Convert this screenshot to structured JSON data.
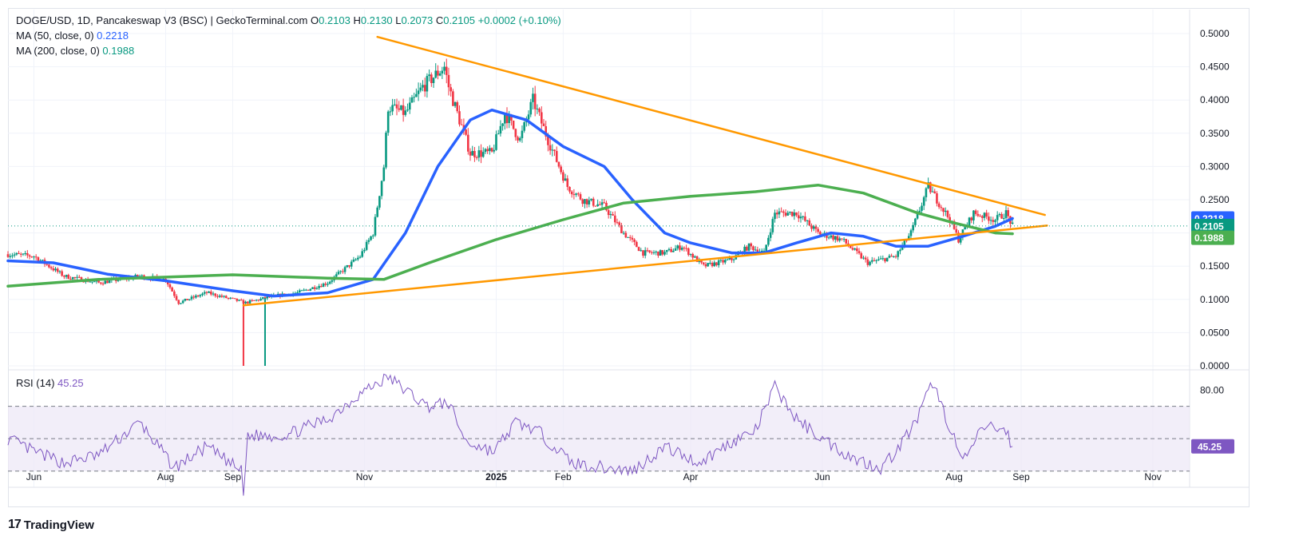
{
  "header": {
    "symbol_line": "DOGE/USD, 1D, Pancakeswap V3 (BSC) | GeckoTerminal.com",
    "ohlc": [
      {
        "label": "O",
        "value": "0.2103"
      },
      {
        "label": "H",
        "value": "0.2130"
      },
      {
        "label": "L",
        "value": "0.2073"
      },
      {
        "label": "C",
        "value": "0.2105"
      }
    ],
    "change": "+0.0002 (+0.10%)",
    "ma50_label": "MA (50, close, 0)",
    "ma50_value": "0.2218",
    "ma200_label": "MA (200, close, 0)",
    "ma200_value": "0.1988"
  },
  "rsi_panel": {
    "label": "RSI (14)",
    "value": "45.25",
    "axis_label": "80.00",
    "badge": "45.25",
    "upper": 70,
    "lower": 30,
    "mid": 50
  },
  "branding": {
    "logo_text": "TradingView"
  },
  "colors": {
    "up": "#089981",
    "down": "#f23645",
    "ma50": "#2962ff",
    "ma200": "#4caf50",
    "trendline": "#ff9800",
    "rsi": "#7e57c2",
    "rsi_band": "#ede7f6"
  },
  "chart_data": [
    {
      "type": "candlestick",
      "title": "DOGE/USD, 1D",
      "ylim": [
        0,
        0.5
      ],
      "y_ticks": [
        "0.5000",
        "0.4500",
        "0.4000",
        "0.3500",
        "0.3000",
        "0.2500",
        "0.2000",
        "0.1500",
        "0.1000",
        "0.0500",
        "0.0000"
      ],
      "x_ticks": [
        "Jun",
        "Aug",
        "Sep",
        "Nov",
        "2025",
        "Feb",
        "Apr",
        "Jun",
        "Aug",
        "Sep",
        "Nov"
      ],
      "x_tick_dates": [
        "2024-06-01",
        "2024-08-01",
        "2024-09-01",
        "2024-11-01",
        "2025-01-01",
        "2025-02-01",
        "2025-04-01",
        "2025-06-01",
        "2025-08-01",
        "2025-09-01",
        "2025-11-01"
      ],
      "x_range": [
        "2024-05-20",
        "2025-11-18"
      ],
      "last_price": 0.2105,
      "price_anchors": [
        [
          "2024-05-20",
          0.168
        ],
        [
          "2024-06-01",
          0.165
        ],
        [
          "2024-06-15",
          0.135
        ],
        [
          "2024-07-01",
          0.125
        ],
        [
          "2024-07-20",
          0.135
        ],
        [
          "2024-08-01",
          0.13
        ],
        [
          "2024-08-07",
          0.095
        ],
        [
          "2024-08-20",
          0.11
        ],
        [
          "2024-09-01",
          0.1
        ],
        [
          "2024-09-07",
          0.095
        ],
        [
          "2024-09-20",
          0.105
        ],
        [
          "2024-10-01",
          0.11
        ],
        [
          "2024-10-15",
          0.125
        ],
        [
          "2024-10-30",
          0.165
        ],
        [
          "2024-11-05",
          0.2
        ],
        [
          "2024-11-10",
          0.3
        ],
        [
          "2024-11-12",
          0.39
        ],
        [
          "2024-11-20",
          0.38
        ],
        [
          "2024-11-28",
          0.42
        ],
        [
          "2024-12-08",
          0.45
        ],
        [
          "2024-12-10",
          0.42
        ],
        [
          "2024-12-20",
          0.32
        ],
        [
          "2024-12-30",
          0.32
        ],
        [
          "2025-01-05",
          0.38
        ],
        [
          "2025-01-12",
          0.34
        ],
        [
          "2025-01-18",
          0.4
        ],
        [
          "2025-01-25",
          0.34
        ],
        [
          "2025-02-03",
          0.27
        ],
        [
          "2025-02-10",
          0.25
        ],
        [
          "2025-02-20",
          0.24
        ],
        [
          "2025-03-01",
          0.2
        ],
        [
          "2025-03-10",
          0.17
        ],
        [
          "2025-03-20",
          0.17
        ],
        [
          "2025-03-28",
          0.18
        ],
        [
          "2025-04-07",
          0.15
        ],
        [
          "2025-04-20",
          0.16
        ],
        [
          "2025-04-28",
          0.18
        ],
        [
          "2025-05-05",
          0.17
        ],
        [
          "2025-05-10",
          0.23
        ],
        [
          "2025-05-20",
          0.23
        ],
        [
          "2025-05-30",
          0.2
        ],
        [
          "2025-06-10",
          0.19
        ],
        [
          "2025-06-22",
          0.155
        ],
        [
          "2025-07-05",
          0.165
        ],
        [
          "2025-07-12",
          0.2
        ],
        [
          "2025-07-20",
          0.27
        ],
        [
          "2025-07-30",
          0.22
        ],
        [
          "2025-08-03",
          0.19
        ],
        [
          "2025-08-10",
          0.23
        ],
        [
          "2025-08-20",
          0.22
        ],
        [
          "2025-08-25",
          0.23
        ],
        [
          "2025-08-28",
          0.2105
        ]
      ],
      "spikes": [
        {
          "date": "2024-09-06",
          "low": 0.0
        },
        {
          "date": "2024-09-16",
          "low": 0.0
        }
      ],
      "series": [
        {
          "name": "MA (50, close, 0)",
          "points": [
            [
              "2024-05-20",
              0.158
            ],
            [
              "2024-06-10",
              0.155
            ],
            [
              "2024-07-05",
              0.138
            ],
            [
              "2024-08-01",
              0.128
            ],
            [
              "2024-09-01",
              0.113
            ],
            [
              "2024-09-20",
              0.105
            ],
            [
              "2024-10-15",
              0.11
            ],
            [
              "2024-11-05",
              0.13
            ],
            [
              "2024-11-20",
              0.2
            ],
            [
              "2024-12-05",
              0.3
            ],
            [
              "2024-12-20",
              0.37
            ],
            [
              "2024-12-30",
              0.385
            ],
            [
              "2025-01-15",
              0.37
            ],
            [
              "2025-02-01",
              0.33
            ],
            [
              "2025-02-20",
              0.3
            ],
            [
              "2025-03-05",
              0.25
            ],
            [
              "2025-03-20",
              0.2
            ],
            [
              "2025-04-01",
              0.185
            ],
            [
              "2025-04-20",
              0.17
            ],
            [
              "2025-05-05",
              0.17
            ],
            [
              "2025-05-20",
              0.185
            ],
            [
              "2025-06-05",
              0.2
            ],
            [
              "2025-06-20",
              0.195
            ],
            [
              "2025-07-05",
              0.18
            ],
            [
              "2025-07-20",
              0.18
            ],
            [
              "2025-08-05",
              0.195
            ],
            [
              "2025-08-20",
              0.21
            ],
            [
              "2025-08-28",
              0.2218
            ]
          ]
        },
        {
          "name": "MA (200, close, 0)",
          "points": [
            [
              "2024-05-20",
              0.12
            ],
            [
              "2024-07-01",
              0.13
            ],
            [
              "2024-09-01",
              0.137
            ],
            [
              "2024-10-15",
              0.132
            ],
            [
              "2024-11-10",
              0.13
            ],
            [
              "2024-12-01",
              0.155
            ],
            [
              "2025-01-01",
              0.19
            ],
            [
              "2025-02-01",
              0.22
            ],
            [
              "2025-03-01",
              0.245
            ],
            [
              "2025-04-01",
              0.255
            ],
            [
              "2025-05-01",
              0.262
            ],
            [
              "2025-05-30",
              0.272
            ],
            [
              "2025-06-20",
              0.26
            ],
            [
              "2025-07-15",
              0.23
            ],
            [
              "2025-08-01",
              0.215
            ],
            [
              "2025-08-20",
              0.2
            ],
            [
              "2025-08-28",
              0.1988
            ]
          ]
        },
        {
          "name": "descending trendline",
          "points": [
            [
              "2024-11-07",
              0.495
            ],
            [
              "2025-09-12",
              0.227
            ]
          ]
        },
        {
          "name": "ascending trendline",
          "points": [
            [
              "2024-09-06",
              0.091
            ],
            [
              "2025-09-13",
              0.211
            ]
          ]
        }
      ]
    },
    {
      "type": "line",
      "title": "RSI (14)",
      "ylim": [
        20,
        90
      ],
      "y_ticks": [
        "80.00"
      ],
      "guides": [
        70,
        50,
        30
      ],
      "last_value": 45.25,
      "anchors": [
        [
          "2024-05-20",
          50
        ],
        [
          "2024-06-01",
          42
        ],
        [
          "2024-06-15",
          35
        ],
        [
          "2024-07-01",
          40
        ],
        [
          "2024-07-20",
          60
        ],
        [
          "2024-08-05",
          32
        ],
        [
          "2024-08-20",
          45
        ],
        [
          "2024-09-05",
          30
        ],
        [
          "2024-09-06",
          15
        ],
        [
          "2024-09-08",
          52
        ],
        [
          "2024-09-25",
          52
        ],
        [
          "2024-10-15",
          62
        ],
        [
          "2024-10-30",
          78
        ],
        [
          "2024-11-12",
          88
        ],
        [
          "2024-11-30",
          70
        ],
        [
          "2024-12-10",
          72
        ],
        [
          "2024-12-18",
          48
        ],
        [
          "2024-12-31",
          42
        ],
        [
          "2025-01-10",
          60
        ],
        [
          "2025-01-20",
          55
        ],
        [
          "2025-02-05",
          35
        ],
        [
          "2025-02-20",
          32
        ],
        [
          "2025-03-05",
          30
        ],
        [
          "2025-03-20",
          45
        ],
        [
          "2025-04-05",
          35
        ],
        [
          "2025-04-20",
          48
        ],
        [
          "2025-05-01",
          55
        ],
        [
          "2025-05-10",
          82
        ],
        [
          "2025-05-20",
          62
        ],
        [
          "2025-06-01",
          50
        ],
        [
          "2025-06-15",
          38
        ],
        [
          "2025-06-28",
          32
        ],
        [
          "2025-07-05",
          42
        ],
        [
          "2025-07-15",
          62
        ],
        [
          "2025-07-22",
          85
        ],
        [
          "2025-08-01",
          50
        ],
        [
          "2025-08-05",
          35
        ],
        [
          "2025-08-15",
          58
        ],
        [
          "2025-08-25",
          55
        ],
        [
          "2025-08-28",
          45.25
        ]
      ]
    }
  ]
}
